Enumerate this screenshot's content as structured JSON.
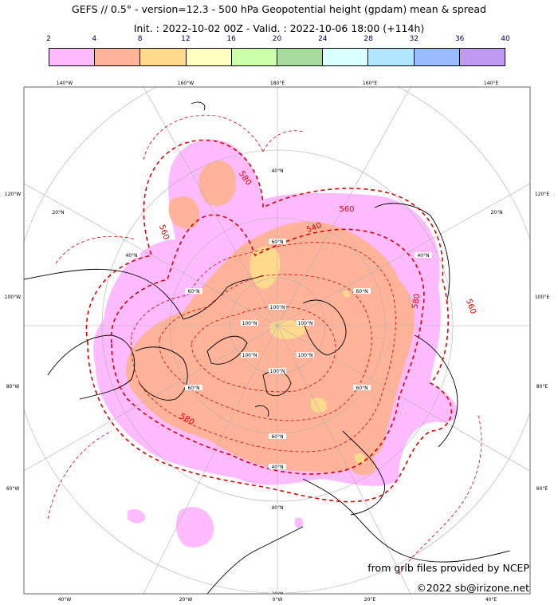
{
  "title": "GEFS // 0.5° - version=12.3 - 500 hPa Geopotential height (gpdam) mean & spread",
  "subtitle": "Init. : 2022-10-02 00Z - Valid. : 2022-10-06 18:00 (+114h)",
  "colorbar": {
    "ticks": [
      "2",
      "4",
      "8",
      "12",
      "16",
      "20",
      "24",
      "28",
      "32",
      "36",
      "40"
    ],
    "colors": [
      "#ffbbff",
      "#ffb399",
      "#ffd98c",
      "#ffffc2",
      "#ccffaa",
      "#a8dc9e",
      "#d9ffff",
      "#b0e6ff",
      "#99bbff",
      "#c099f0"
    ]
  },
  "map": {
    "longitude_labels_top": [
      "140°W",
      "160°W",
      "180°E",
      "160°E",
      "140°E"
    ],
    "longitude_labels_bottom": [
      "40°W",
      "20°W",
      "0°W",
      "20°E",
      "40°E"
    ],
    "longitude_labels_left": [
      "120°W",
      "100°W",
      "80°W",
      "60°W"
    ],
    "longitude_labels_right": [
      "120°E",
      "100°E",
      "80°E",
      "60°E"
    ],
    "latitude_labels": [
      "20°N",
      "40°N",
      "60°N",
      "100°N"
    ],
    "contour_labels": [
      "580",
      "560",
      "540",
      "560",
      "580",
      "560",
      "580"
    ],
    "contour_color": "#e00000",
    "land_outline_color": "#000000"
  },
  "credits": {
    "line1": "from grib files provided by NCEP",
    "line2": "©2022 sb@irizone.net"
  }
}
